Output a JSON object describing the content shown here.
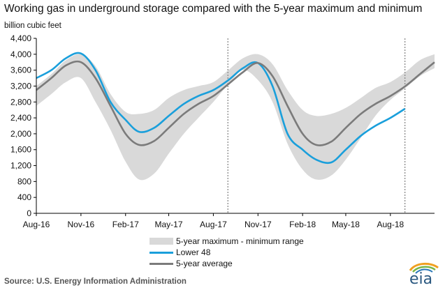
{
  "title": "Working gas in underground  storage compared with the 5-year maximum and minimum",
  "y_unit_label": "billion cubic feet",
  "source": "Source:  U.S. Energy Information Administration",
  "logo_text": "eia",
  "legend": {
    "band": "5-year maximum - minimum range",
    "lower48": "Lower 48",
    "avg": "5-year average"
  },
  "colors": {
    "band": "#d9d9d9",
    "lower48": "#1a9fdb",
    "avg": "#7b7b7b",
    "axis": "#000000",
    "divider": "#888888"
  },
  "chart_data": {
    "type": "line",
    "title": "Working gas in underground  storage compared with the 5-year maximum and minimum",
    "ylabel": "billion cubic feet",
    "ylim": [
      0,
      4400
    ],
    "yticks": [
      0,
      400,
      800,
      1200,
      1600,
      2000,
      2400,
      2800,
      3200,
      3600,
      4000,
      4400
    ],
    "ytick_labels": [
      "0",
      "400",
      "800",
      "1,200",
      "1,600",
      "2,000",
      "2,400",
      "2,800",
      "3,200",
      "3,600",
      "4,000",
      "4,400"
    ],
    "xlim": [
      "2016-08-01",
      "2018-10-31"
    ],
    "xticks": [
      "2016-08-01",
      "2016-11-01",
      "2017-02-01",
      "2017-05-01",
      "2017-08-01",
      "2017-11-01",
      "2018-02-01",
      "2018-05-01",
      "2018-08-01"
    ],
    "xtick_labels": [
      "Aug-16",
      "Nov-16",
      "Feb-17",
      "May-17",
      "Aug-17",
      "Nov-17",
      "Feb-18",
      "May-18",
      "Aug-18"
    ],
    "dividers": [
      "2017-08-31",
      "2018-08-31"
    ],
    "legend_position": "bottom",
    "grid": false,
    "series": [
      {
        "name": "5-year maximum - minimum range",
        "kind": "band",
        "x": [
          "2016-08-01",
          "2016-09-01",
          "2016-10-01",
          "2016-11-01",
          "2016-12-01",
          "2017-01-01",
          "2017-02-01",
          "2017-03-01",
          "2017-04-01",
          "2017-05-01",
          "2017-06-01",
          "2017-07-01",
          "2017-08-01",
          "2017-09-01",
          "2017-10-01",
          "2017-11-01",
          "2017-12-01",
          "2018-01-01",
          "2018-02-01",
          "2018-03-01",
          "2018-04-01",
          "2018-05-01",
          "2018-06-01",
          "2018-07-01",
          "2018-08-01",
          "2018-09-01",
          "2018-10-01",
          "2018-10-31"
        ],
        "upper": [
          3200,
          3500,
          3850,
          4000,
          3700,
          3000,
          2550,
          2500,
          2600,
          2900,
          3100,
          3200,
          3300,
          3600,
          3900,
          4000,
          3750,
          3100,
          2600,
          2450,
          2500,
          2650,
          2900,
          3150,
          3300,
          3550,
          3850,
          4000
        ],
        "lower": [
          2700,
          3000,
          3300,
          3400,
          2800,
          2100,
          1300,
          850,
          1000,
          1500,
          2000,
          2400,
          2800,
          3250,
          3600,
          3350,
          2800,
          1750,
          1100,
          850,
          950,
          1350,
          1900,
          2450,
          2850,
          3150,
          3450,
          3650
        ]
      },
      {
        "name": "Lower 48",
        "x": [
          "2016-08-01",
          "2016-09-01",
          "2016-10-01",
          "2016-11-01",
          "2016-12-01",
          "2017-01-01",
          "2017-02-01",
          "2017-03-01",
          "2017-04-01",
          "2017-05-01",
          "2017-06-01",
          "2017-07-01",
          "2017-08-01",
          "2017-09-01",
          "2017-10-01",
          "2017-11-01",
          "2017-12-01",
          "2018-01-01",
          "2018-02-01",
          "2018-03-01",
          "2018-04-01",
          "2018-05-01",
          "2018-06-01",
          "2018-07-01",
          "2018-08-01",
          "2018-08-31"
        ],
        "values": [
          3400,
          3600,
          3900,
          4020,
          3600,
          2800,
          2350,
          2050,
          2150,
          2450,
          2750,
          2950,
          3100,
          3350,
          3650,
          3780,
          3200,
          2000,
          1600,
          1350,
          1280,
          1600,
          1950,
          2200,
          2400,
          2630
        ]
      },
      {
        "name": "5-year average",
        "x": [
          "2016-08-01",
          "2016-09-01",
          "2016-10-01",
          "2016-11-01",
          "2016-12-01",
          "2017-01-01",
          "2017-02-01",
          "2017-03-01",
          "2017-04-01",
          "2017-05-01",
          "2017-06-01",
          "2017-07-01",
          "2017-08-01",
          "2017-09-01",
          "2017-10-01",
          "2017-11-01",
          "2017-12-01",
          "2018-01-01",
          "2018-02-01",
          "2018-03-01",
          "2018-04-01",
          "2018-05-01",
          "2018-06-01",
          "2018-07-01",
          "2018-08-01",
          "2018-09-01",
          "2018-10-01",
          "2018-10-31"
        ],
        "values": [
          3100,
          3400,
          3720,
          3800,
          3400,
          2700,
          2000,
          1720,
          1820,
          2150,
          2500,
          2750,
          2950,
          3250,
          3550,
          3780,
          3450,
          2700,
          2000,
          1720,
          1800,
          2150,
          2500,
          2750,
          2950,
          3200,
          3500,
          3800
        ]
      }
    ]
  }
}
